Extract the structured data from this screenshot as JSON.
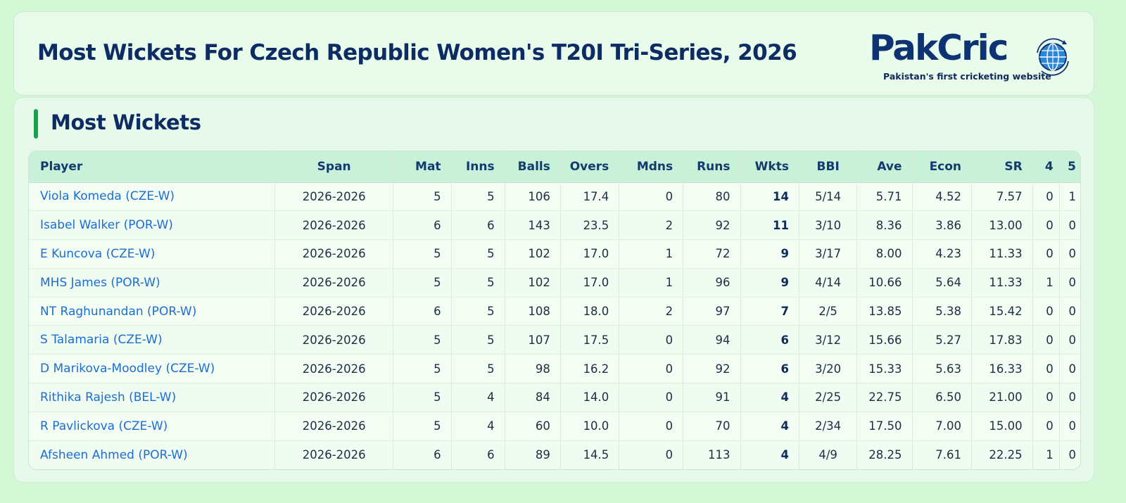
{
  "header": {
    "title": "Most Wickets For Czech Republic Women's T20I Tri-Series, 2026",
    "logo_text": "PakCric",
    "logo_tagline": "Pakistan's first cricketing website"
  },
  "section": {
    "title": "Most Wickets"
  },
  "table": {
    "columns": [
      "Player",
      "Span",
      "Mat",
      "Inns",
      "Balls",
      "Overs",
      "Mdns",
      "Runs",
      "Wkts",
      "BBI",
      "Ave",
      "Econ",
      "SR",
      "4",
      "5"
    ],
    "rows": [
      {
        "player": "Viola Komeda (CZE-W)",
        "span": "2026-2026",
        "mat": "5",
        "inns": "5",
        "balls": "106",
        "overs": "17.4",
        "mdns": "0",
        "runs": "80",
        "wkts": "14",
        "bbi": "5/14",
        "ave": "5.71",
        "econ": "4.52",
        "sr": "7.57",
        "four": "0",
        "five": "1"
      },
      {
        "player": "Isabel Walker (POR-W)",
        "span": "2026-2026",
        "mat": "6",
        "inns": "6",
        "balls": "143",
        "overs": "23.5",
        "mdns": "2",
        "runs": "92",
        "wkts": "11",
        "bbi": "3/10",
        "ave": "8.36",
        "econ": "3.86",
        "sr": "13.00",
        "four": "0",
        "five": "0"
      },
      {
        "player": "E Kuncova (CZE-W)",
        "span": "2026-2026",
        "mat": "5",
        "inns": "5",
        "balls": "102",
        "overs": "17.0",
        "mdns": "1",
        "runs": "72",
        "wkts": "9",
        "bbi": "3/17",
        "ave": "8.00",
        "econ": "4.23",
        "sr": "11.33",
        "four": "0",
        "five": "0"
      },
      {
        "player": "MHS James (POR-W)",
        "span": "2026-2026",
        "mat": "5",
        "inns": "5",
        "balls": "102",
        "overs": "17.0",
        "mdns": "1",
        "runs": "96",
        "wkts": "9",
        "bbi": "4/14",
        "ave": "10.66",
        "econ": "5.64",
        "sr": "11.33",
        "four": "1",
        "five": "0"
      },
      {
        "player": "NT Raghunandan (POR-W)",
        "span": "2026-2026",
        "mat": "6",
        "inns": "5",
        "balls": "108",
        "overs": "18.0",
        "mdns": "2",
        "runs": "97",
        "wkts": "7",
        "bbi": "2/5",
        "ave": "13.85",
        "econ": "5.38",
        "sr": "15.42",
        "four": "0",
        "five": "0"
      },
      {
        "player": "S Talamaria (CZE-W)",
        "span": "2026-2026",
        "mat": "5",
        "inns": "5",
        "balls": "107",
        "overs": "17.5",
        "mdns": "0",
        "runs": "94",
        "wkts": "6",
        "bbi": "3/12",
        "ave": "15.66",
        "econ": "5.27",
        "sr": "17.83",
        "four": "0",
        "five": "0"
      },
      {
        "player": "D Marikova-Moodley (CZE-W)",
        "span": "2026-2026",
        "mat": "5",
        "inns": "5",
        "balls": "98",
        "overs": "16.2",
        "mdns": "0",
        "runs": "92",
        "wkts": "6",
        "bbi": "3/20",
        "ave": "15.33",
        "econ": "5.63",
        "sr": "16.33",
        "four": "0",
        "five": "0"
      },
      {
        "player": "Rithika Rajesh (BEL-W)",
        "span": "2026-2026",
        "mat": "5",
        "inns": "4",
        "balls": "84",
        "overs": "14.0",
        "mdns": "0",
        "runs": "91",
        "wkts": "4",
        "bbi": "2/25",
        "ave": "22.75",
        "econ": "6.50",
        "sr": "21.00",
        "four": "0",
        "five": "0"
      },
      {
        "player": "R Pavlickova (CZE-W)",
        "span": "2026-2026",
        "mat": "5",
        "inns": "4",
        "balls": "60",
        "overs": "10.0",
        "mdns": "0",
        "runs": "70",
        "wkts": "4",
        "bbi": "2/34",
        "ave": "17.50",
        "econ": "7.00",
        "sr": "15.00",
        "four": "0",
        "five": "0"
      },
      {
        "player": "Afsheen Ahmed (POR-W)",
        "span": "2026-2026",
        "mat": "6",
        "inns": "6",
        "balls": "89",
        "overs": "14.5",
        "mdns": "0",
        "runs": "113",
        "wkts": "4",
        "bbi": "4/9",
        "ave": "28.25",
        "econ": "7.61",
        "sr": "22.25",
        "four": "1",
        "five": "0"
      }
    ]
  },
  "colors": {
    "page_bg": "#d4f7d6",
    "title_navy": "#0c2c63",
    "accent_green": "#1aa14f",
    "player_link_blue": "#1b6fd1",
    "header_row_bg": "#c9f0d8"
  }
}
